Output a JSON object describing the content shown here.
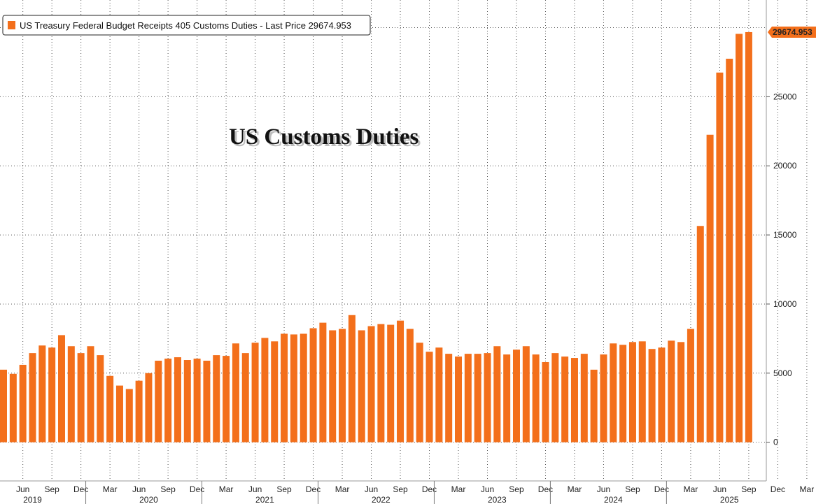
{
  "chart_data": {
    "type": "bar",
    "legend_label": "US Treasury Federal Budget Receipts 405 Customs Duties - Last Price 29674.953",
    "overlay_title": "US Customs Duties",
    "last_value_label": "29674.953",
    "legend_placement": "top-left",
    "grid": true,
    "bar_color": "#f36f1b",
    "ylim": [
      -2800,
      32000
    ],
    "yticks": [
      0,
      5000,
      10000,
      15000,
      20000,
      25000
    ],
    "ytick_labels": [
      "0",
      "5000",
      "10000",
      "15000",
      "20000",
      "25000"
    ],
    "x_month_labels": [
      "Jun",
      "Sep",
      "Dec",
      "Mar",
      "Jun",
      "Sep",
      "Dec",
      "Mar",
      "Jun",
      "Sep",
      "Dec",
      "Mar",
      "Jun",
      "Sep",
      "Dec",
      "Mar",
      "Jun",
      "Sep",
      "Dec",
      "Mar",
      "Jun",
      "Sep",
      "Dec",
      "Mar",
      "Jun",
      "Sep",
      "Dec",
      "Mar",
      "Jun",
      "Sep"
    ],
    "x_month_label_index": [
      2,
      5,
      8,
      11,
      14,
      17,
      20,
      23,
      26,
      29,
      32,
      35,
      38,
      41,
      44,
      47,
      50,
      53,
      56,
      59,
      62,
      65,
      68,
      71,
      74,
      77,
      80,
      83,
      86,
      89
    ],
    "year_labels": [
      "2019",
      "2020",
      "2021",
      "2022",
      "2023",
      "2024",
      "2025"
    ],
    "year_label_index": [
      3,
      15,
      27,
      39,
      51,
      63,
      75
    ],
    "categories": [
      "2019-04",
      "2019-05",
      "2019-06",
      "2019-07",
      "2019-08",
      "2019-09",
      "2019-10",
      "2019-11",
      "2019-12",
      "2020-01",
      "2020-02",
      "2020-03",
      "2020-04",
      "2020-05",
      "2020-06",
      "2020-07",
      "2020-08",
      "2020-09",
      "2020-10",
      "2020-11",
      "2020-12",
      "2021-01",
      "2021-02",
      "2021-03",
      "2021-04",
      "2021-05",
      "2021-06",
      "2021-07",
      "2021-08",
      "2021-09",
      "2021-10",
      "2021-11",
      "2021-12",
      "2022-01",
      "2022-02",
      "2022-03",
      "2022-04",
      "2022-05",
      "2022-06",
      "2022-07",
      "2022-08",
      "2022-09",
      "2022-10",
      "2022-11",
      "2022-12",
      "2023-01",
      "2023-02",
      "2023-03",
      "2023-04",
      "2023-05",
      "2023-06",
      "2023-07",
      "2023-08",
      "2023-09",
      "2023-10",
      "2023-11",
      "2023-12",
      "2024-01",
      "2024-02",
      "2024-03",
      "2024-04",
      "2024-05",
      "2024-06",
      "2024-07",
      "2024-08",
      "2024-09",
      "2024-10",
      "2024-11",
      "2024-12",
      "2025-01",
      "2025-02",
      "2025-03",
      "2025-04",
      "2025-05",
      "2025-06",
      "2025-07",
      "2025-08",
      "2025-09"
    ],
    "values": [
      5250,
      4950,
      5600,
      6450,
      7000,
      6850,
      7750,
      6950,
      6450,
      6950,
      6300,
      4800,
      4100,
      3850,
      4450,
      5000,
      5900,
      6050,
      6150,
      5950,
      6050,
      5900,
      6300,
      6250,
      7150,
      6450,
      7200,
      7550,
      7300,
      7850,
      7800,
      7850,
      8250,
      8650,
      8100,
      8200,
      9200,
      8100,
      8400,
      8550,
      8500,
      8800,
      8200,
      7200,
      6550,
      6850,
      6400,
      6200,
      6400,
      6400,
      6450,
      6950,
      6350,
      6700,
      6950,
      6350,
      5800,
      6450,
      6200,
      6100,
      6400,
      5250,
      6350,
      7150,
      7050,
      7250,
      7300,
      6750,
      6850,
      7350,
      7250,
      8200,
      15650,
      22250,
      26750,
      27750,
      29550,
      29674.953
    ]
  }
}
